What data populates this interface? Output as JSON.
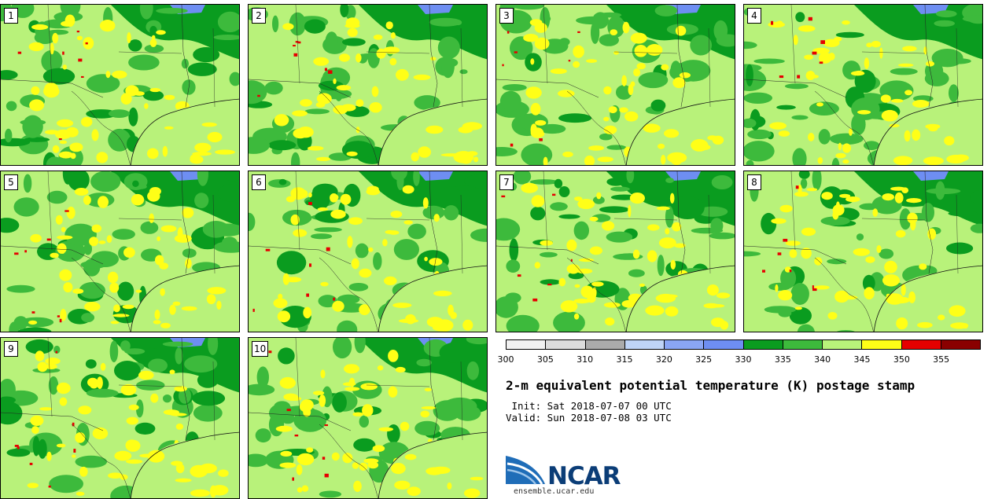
{
  "panels": [
    "1",
    "2",
    "3",
    "4",
    "5",
    "6",
    "7",
    "8",
    "9",
    "10"
  ],
  "colorbar": {
    "colors": [
      "#f1f1f1",
      "#dcdcdc",
      "#ababab",
      "#bfd4f7",
      "#8aa6f5",
      "#6e8ef2",
      "#0a9c1f",
      "#3dba3c",
      "#b8f27a",
      "#ffff17",
      "#e50000",
      "#8a0000"
    ],
    "ticks": [
      "300",
      "305",
      "310",
      "315",
      "320",
      "325",
      "330",
      "335",
      "340",
      "345",
      "350",
      "355"
    ]
  },
  "title": "2-m equivalent potential temperature (K) postage stamp",
  "init": " Init: Sat 2018-07-07 00 UTC",
  "valid": "Valid: Sun 2018-07-08 03 UTC",
  "logo": {
    "text": "NCAR",
    "url": "ensemble.ucar.edu"
  }
}
